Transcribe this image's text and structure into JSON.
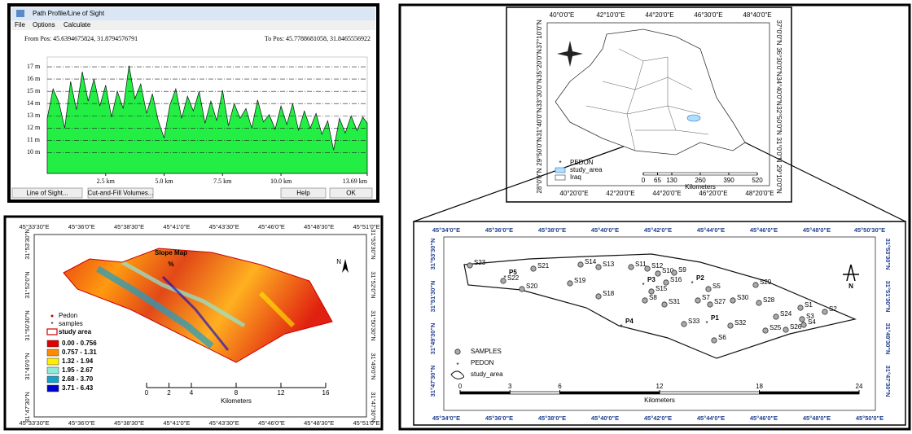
{
  "profile_window": {
    "title": "Path Profile/Line of Sight",
    "menu": [
      "File",
      "Options",
      "Calculate"
    ],
    "from_pos": "From Pos: 45.6394675824, 31.8794576791",
    "to_pos": "To Pos: 45.7788681058, 31.8465556922",
    "buttons": [
      "Line of Sight...",
      "Cut-and-Fill Volumes...",
      "Help",
      "OK"
    ],
    "chart_data": {
      "type": "area",
      "x": [
        0,
        0.25,
        0.5,
        0.75,
        1.0,
        1.25,
        1.5,
        1.75,
        2.0,
        2.25,
        2.5,
        2.75,
        3.0,
        3.25,
        3.5,
        3.75,
        4.0,
        4.25,
        4.5,
        4.75,
        5.0,
        5.25,
        5.5,
        5.75,
        6.0,
        6.25,
        6.5,
        6.75,
        7.0,
        7.25,
        7.5,
        7.75,
        8.0,
        8.25,
        8.5,
        8.75,
        9.0,
        9.25,
        9.5,
        9.75,
        10.0,
        10.25,
        10.5,
        10.75,
        11.0,
        11.25,
        11.5,
        11.75,
        12.0,
        12.25,
        12.5,
        12.75,
        13.0,
        13.25,
        13.5,
        13.69
      ],
      "values": [
        12.8,
        15.2,
        14.1,
        12.0,
        15.8,
        13.5,
        16.6,
        14.2,
        16.0,
        13.8,
        15.5,
        12.9,
        15.0,
        13.6,
        17.1,
        14.4,
        15.6,
        13.2,
        14.8,
        12.6,
        11.2,
        13.9,
        15.2,
        12.8,
        14.6,
        13.4,
        15.0,
        12.4,
        14.2,
        12.6,
        15.1,
        12.2,
        14.0,
        12.8,
        13.6,
        12.0,
        14.3,
        12.5,
        13.1,
        11.9,
        13.8,
        12.3,
        14.0,
        11.8,
        13.4,
        12.0,
        13.2,
        11.5,
        12.6,
        10.2,
        12.8,
        11.6,
        13.0,
        11.8,
        12.9,
        12.4
      ],
      "color": "#22ee44",
      "xlim": [
        0,
        13.69
      ],
      "ylim": [
        8.3,
        17.8
      ],
      "grid": true,
      "yticks": [
        {
          "value": 17,
          "label": "17 m"
        },
        {
          "value": 16,
          "label": "16 m"
        },
        {
          "value": 15,
          "label": "15 m"
        },
        {
          "value": 14,
          "label": "14 m"
        },
        {
          "value": 13,
          "label": "13 m"
        },
        {
          "value": 12,
          "label": "12 m"
        },
        {
          "value": 11,
          "label": "11 m"
        },
        {
          "value": 10,
          "label": "10 m"
        }
      ],
      "xticks": [
        {
          "value": 2.5,
          "label": "2.5 km"
        },
        {
          "value": 5.0,
          "label": "5.0 km"
        },
        {
          "value": 7.5,
          "label": "7.5 km"
        },
        {
          "value": 10.0,
          "label": "10.0 km"
        },
        {
          "value": 13.69,
          "label": "13.69 km"
        }
      ]
    }
  },
  "slope_map": {
    "title": "Slope Map",
    "unit": "%",
    "lon_labels": [
      "45°33'30\"E",
      "45°36'0\"E",
      "45°38'30\"E",
      "45°41'0\"E",
      "45°43'30\"E",
      "45°46'0\"E",
      "45°48'30\"E",
      "45°51'0\"E"
    ],
    "lat_labels": [
      "31°53'30\"N",
      "31°52'0\"N",
      "31°50'30\"N",
      "31°49'0\"N",
      "31°47'30\"N"
    ],
    "legend_symbols": [
      "Pedon",
      "samples",
      "study area"
    ],
    "legend_classes": [
      {
        "label": "0.00 - 0.756",
        "color": "#e00000"
      },
      {
        "label": "0.757 - 1.31",
        "color": "#ff8c00"
      },
      {
        "label": "1.32 - 1.94",
        "color": "#ffee00"
      },
      {
        "label": "1.95 - 2.67",
        "color": "#8fe8d8"
      },
      {
        "label": "2.68 - 3.70",
        "color": "#1aa0c8"
      },
      {
        "label": "3.71 - 6.43",
        "color": "#0000cc"
      }
    ],
    "north": "N",
    "scale": [
      0,
      2,
      4,
      8,
      12,
      16
    ],
    "scale_unit": "Kilometers"
  },
  "iraq_map": {
    "lon_top": [
      "40°0'0\"E",
      "42°10'0\"E",
      "44°20'0\"E",
      "46°30'0\"E",
      "48°40'0\"E"
    ],
    "lon_bottom": [
      "40°20'0\"E",
      "42°20'0\"E",
      "44°20'0\"E",
      "46°20'0\"E",
      "48°20'0\"E"
    ],
    "lat_left": [
      "37°10'0\"N",
      "35°20'0\"N",
      "33°30'0\"N",
      "31°40'0\"N",
      "29°50'0\"N",
      "28°0'0\"N"
    ],
    "lat_right": [
      "37°0'0\"N",
      "36°30'0\"N",
      "34°40'0\"N",
      "32°50'0\"N",
      "31°0'0\"N",
      "29°10'0\"N"
    ],
    "legend": [
      "PEDON",
      "study_area",
      "Iraq"
    ],
    "scale": [
      0,
      65,
      130,
      260,
      390,
      520
    ],
    "scale_unit": "Kilometers"
  },
  "study_map": {
    "lon_top": [
      "45°34'0\"E",
      "45°36'0\"E",
      "45°38'0\"E",
      "45°40'0\"E",
      "45°42'0\"E",
      "45°44'0\"E",
      "45°46'0\"E",
      "45°48'0\"E",
      "45°50'30\"E"
    ],
    "lon_bottom": [
      "45°34'0\"E",
      "45°36'0\"E",
      "45°38'0\"E",
      "45°40'0\"E",
      "45°42'0\"E",
      "45°44'0\"E",
      "45°46'0\"E",
      "45°48'0\"E",
      "45°50'0\"E"
    ],
    "lat_labels": [
      "31°53'30\"N",
      "31°51'30\"N",
      "31°49'30\"N",
      "31°47'30\"N"
    ],
    "samples": [
      "S23",
      "S22",
      "S21",
      "S14",
      "S13",
      "S11",
      "S12",
      "S10",
      "S9",
      "S20",
      "S19",
      "S16",
      "S15",
      "S18",
      "S8",
      "S31",
      "S7",
      "S5",
      "S27",
      "S30",
      "S29",
      "S28",
      "S1",
      "S2",
      "S24",
      "S3",
      "S4",
      "S26",
      "S25",
      "S32",
      "S33",
      "S6"
    ],
    "pedons": [
      "P1",
      "P2",
      "P3",
      "P4",
      "P5"
    ],
    "legend": [
      "SAMPLES",
      "PEDON",
      "study_area"
    ],
    "north": "N",
    "scale": [
      0,
      3,
      6,
      12,
      18,
      24
    ],
    "scale_unit": "Kilometers"
  }
}
